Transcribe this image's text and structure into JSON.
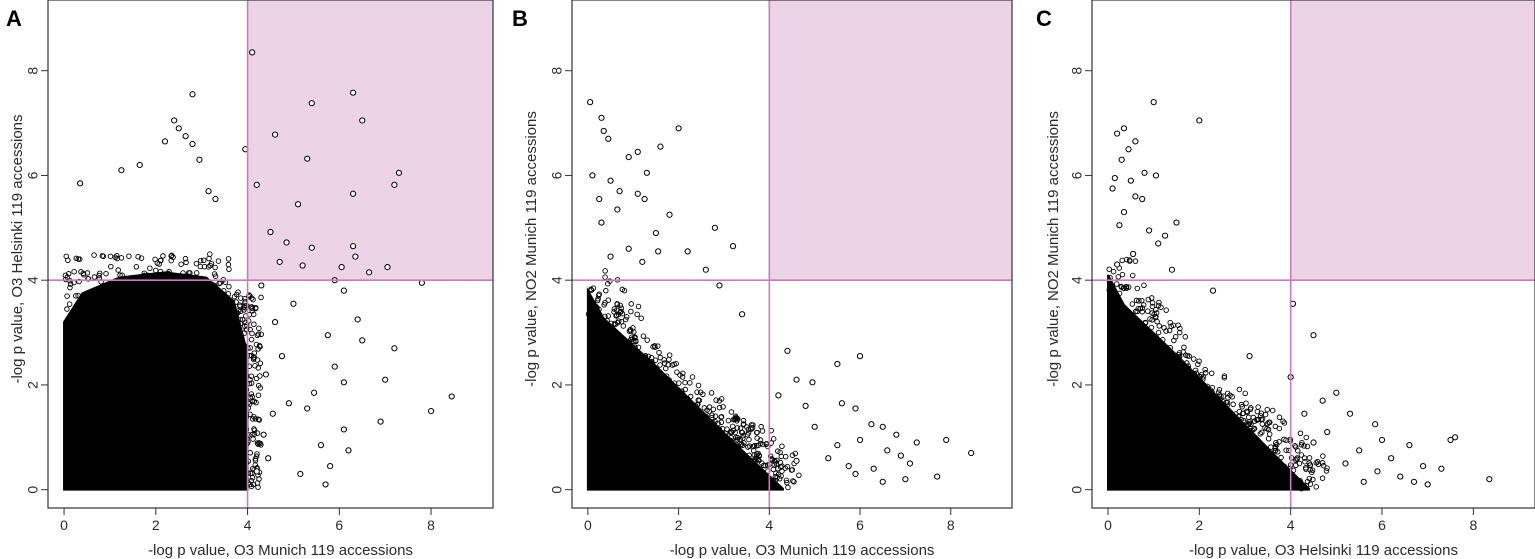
{
  "colors": {
    "highlight": "#ecd3e5",
    "threshold_line": "#c77bc1",
    "points": "#000000"
  },
  "chart_data": [
    {
      "panel": "A",
      "type": "scatter",
      "xlabel": "-log p value, O3 Munich 119 accessions",
      "ylabel": "-log p value, O3 Helsinki 119 accessions",
      "xlim": [
        -0.35,
        9.35
      ],
      "ylim": [
        -0.35,
        9.35
      ],
      "xticks": [
        0,
        2,
        4,
        6,
        8
      ],
      "yticks": [
        0,
        2,
        4,
        6,
        8
      ],
      "threshold": 4,
      "shaded_quadrant": "top-right",
      "dense_region": {
        "x_max": 4.0,
        "y_max": 4.3,
        "shape": "rectangular"
      },
      "points": [
        [
          4.1,
          8.35
        ],
        [
          2.8,
          7.55
        ],
        [
          6.3,
          7.58
        ],
        [
          5.4,
          7.38
        ],
        [
          6.5,
          7.05
        ],
        [
          2.4,
          7.05
        ],
        [
          2.5,
          6.9
        ],
        [
          2.65,
          6.75
        ],
        [
          2.2,
          6.65
        ],
        [
          2.8,
          6.6
        ],
        [
          4.6,
          6.78
        ],
        [
          3.95,
          6.5
        ],
        [
          2.95,
          6.3
        ],
        [
          5.3,
          6.32
        ],
        [
          1.25,
          6.1
        ],
        [
          1.65,
          6.2
        ],
        [
          7.3,
          6.05
        ],
        [
          7.2,
          5.82
        ],
        [
          4.2,
          5.82
        ],
        [
          6.3,
          5.65
        ],
        [
          3.15,
          5.7
        ],
        [
          3.3,
          5.55
        ],
        [
          0.35,
          5.85
        ],
        [
          5.1,
          5.45
        ],
        [
          4.5,
          4.92
        ],
        [
          4.85,
          4.72
        ],
        [
          5.4,
          4.62
        ],
        [
          6.3,
          4.65
        ],
        [
          6.35,
          4.45
        ],
        [
          6.05,
          4.25
        ],
        [
          7.05,
          4.25
        ],
        [
          5.2,
          4.28
        ],
        [
          4.7,
          4.35
        ],
        [
          6.65,
          4.15
        ],
        [
          7.8,
          3.95
        ],
        [
          6.1,
          3.8
        ],
        [
          5.0,
          3.55
        ],
        [
          6.4,
          3.25
        ],
        [
          5.75,
          2.95
        ],
        [
          6.5,
          2.85
        ],
        [
          7.2,
          2.7
        ],
        [
          4.75,
          2.55
        ],
        [
          5.9,
          2.35
        ],
        [
          6.1,
          2.05
        ],
        [
          4.4,
          2.2
        ],
        [
          7.0,
          2.1
        ],
        [
          5.45,
          1.85
        ],
        [
          4.9,
          1.65
        ],
        [
          5.3,
          1.55
        ],
        [
          6.1,
          1.15
        ],
        [
          6.9,
          1.3
        ],
        [
          8.0,
          1.5
        ],
        [
          8.45,
          1.78
        ],
        [
          4.35,
          1.05
        ],
        [
          5.6,
          0.85
        ],
        [
          5.15,
          0.3
        ],
        [
          5.7,
          0.1
        ],
        [
          4.45,
          0.6
        ],
        [
          4.2,
          0.35
        ],
        [
          4.55,
          1.45
        ],
        [
          5.8,
          0.45
        ],
        [
          6.2,
          0.75
        ],
        [
          4.6,
          3.2
        ],
        [
          4.3,
          3.9
        ],
        [
          5.9,
          4.0
        ]
      ]
    },
    {
      "panel": "B",
      "type": "scatter",
      "xlabel": "-log p value, O3 Munich 119 accessions",
      "ylabel": "-log p value, NO2 Munich 119 accessions",
      "xlim": [
        -0.35,
        9.35
      ],
      "ylim": [
        -0.35,
        9.35
      ],
      "xticks": [
        0,
        2,
        4,
        6,
        8
      ],
      "yticks": [
        0,
        2,
        4,
        6,
        8
      ],
      "threshold": 4,
      "shaded_quadrant": "top-right",
      "dense_region": {
        "intercept_y": 3.8,
        "intercept_x": 4.3,
        "shape": "triangular"
      },
      "points": [
        [
          0.05,
          7.4
        ],
        [
          0.3,
          7.1
        ],
        [
          0.35,
          6.85
        ],
        [
          0.45,
          6.7
        ],
        [
          2.0,
          6.9
        ],
        [
          1.6,
          6.55
        ],
        [
          1.1,
          6.45
        ],
        [
          0.9,
          6.35
        ],
        [
          0.1,
          6.0
        ],
        [
          0.5,
          5.9
        ],
        [
          1.3,
          6.05
        ],
        [
          0.7,
          5.7
        ],
        [
          1.1,
          5.65
        ],
        [
          0.25,
          5.55
        ],
        [
          1.25,
          5.55
        ],
        [
          0.65,
          5.35
        ],
        [
          1.8,
          5.25
        ],
        [
          2.8,
          5.0
        ],
        [
          0.3,
          5.1
        ],
        [
          1.5,
          4.9
        ],
        [
          3.2,
          4.65
        ],
        [
          2.2,
          4.55
        ],
        [
          0.9,
          4.6
        ],
        [
          1.55,
          4.55
        ],
        [
          0.5,
          4.45
        ],
        [
          1.2,
          4.35
        ],
        [
          2.6,
          4.2
        ],
        [
          2.9,
          3.9
        ],
        [
          3.4,
          3.35
        ],
        [
          4.4,
          2.65
        ],
        [
          5.5,
          2.4
        ],
        [
          6.0,
          2.55
        ],
        [
          4.95,
          2.05
        ],
        [
          5.6,
          1.65
        ],
        [
          5.9,
          1.55
        ],
        [
          6.25,
          1.25
        ],
        [
          6.5,
          1.2
        ],
        [
          6.8,
          1.05
        ],
        [
          7.25,
          0.9
        ],
        [
          7.9,
          0.95
        ],
        [
          8.45,
          0.7
        ],
        [
          6.0,
          0.95
        ],
        [
          5.5,
          0.85
        ],
        [
          6.9,
          0.65
        ],
        [
          7.1,
          0.5
        ],
        [
          6.3,
          0.4
        ],
        [
          7.7,
          0.25
        ],
        [
          5.9,
          0.3
        ],
        [
          6.5,
          0.15
        ],
        [
          7.0,
          0.2
        ],
        [
          5.0,
          1.2
        ],
        [
          4.8,
          1.6
        ],
        [
          4.6,
          2.1
        ],
        [
          5.3,
          0.6
        ],
        [
          4.6,
          0.55
        ],
        [
          6.6,
          0.75
        ],
        [
          5.75,
          0.45
        ],
        [
          4.2,
          1.8
        ]
      ]
    },
    {
      "panel": "C",
      "type": "scatter",
      "xlabel": "-log p value, O3 Helsinki 119 accessions",
      "ylabel": "-log p value, NO2 Munich 119 accessions",
      "xlim": [
        -0.35,
        9.35
      ],
      "ylim": [
        -0.35,
        9.35
      ],
      "xticks": [
        0,
        2,
        4,
        6,
        8
      ],
      "yticks": [
        0,
        2,
        4,
        6,
        8
      ],
      "threshold": 4,
      "shaded_quadrant": "top-right",
      "dense_region": {
        "intercept_y": 4.1,
        "intercept_x": 4.4,
        "shape": "triangular"
      },
      "points": [
        [
          1.0,
          7.4
        ],
        [
          2.0,
          7.05
        ],
        [
          0.35,
          6.9
        ],
        [
          0.2,
          6.8
        ],
        [
          0.6,
          6.65
        ],
        [
          0.45,
          6.5
        ],
        [
          0.3,
          6.3
        ],
        [
          1.05,
          6.0
        ],
        [
          0.8,
          6.05
        ],
        [
          0.15,
          5.95
        ],
        [
          0.5,
          5.9
        ],
        [
          0.1,
          5.75
        ],
        [
          0.6,
          5.6
        ],
        [
          0.75,
          5.55
        ],
        [
          1.5,
          5.1
        ],
        [
          0.35,
          5.3
        ],
        [
          0.25,
          5.05
        ],
        [
          0.9,
          4.95
        ],
        [
          1.25,
          4.85
        ],
        [
          1.1,
          4.7
        ],
        [
          0.55,
          4.5
        ],
        [
          0.2,
          4.3
        ],
        [
          1.4,
          4.2
        ],
        [
          4.05,
          3.55
        ],
        [
          2.3,
          3.8
        ],
        [
          3.1,
          2.55
        ],
        [
          4.5,
          2.95
        ],
        [
          4.0,
          2.15
        ],
        [
          4.7,
          1.7
        ],
        [
          5.0,
          1.85
        ],
        [
          4.3,
          1.45
        ],
        [
          5.3,
          1.45
        ],
        [
          5.85,
          1.25
        ],
        [
          6.0,
          0.95
        ],
        [
          6.6,
          0.85
        ],
        [
          7.5,
          0.95
        ],
        [
          7.6,
          1.0
        ],
        [
          7.3,
          0.4
        ],
        [
          8.35,
          0.2
        ],
        [
          5.9,
          0.35
        ],
        [
          6.4,
          0.25
        ],
        [
          6.7,
          0.15
        ],
        [
          7.0,
          0.1
        ],
        [
          5.2,
          0.5
        ],
        [
          6.2,
          0.6
        ],
        [
          5.5,
          0.75
        ],
        [
          4.8,
          1.1
        ],
        [
          6.9,
          0.45
        ],
        [
          4.5,
          0.9
        ],
        [
          5.6,
          0.15
        ]
      ]
    }
  ]
}
